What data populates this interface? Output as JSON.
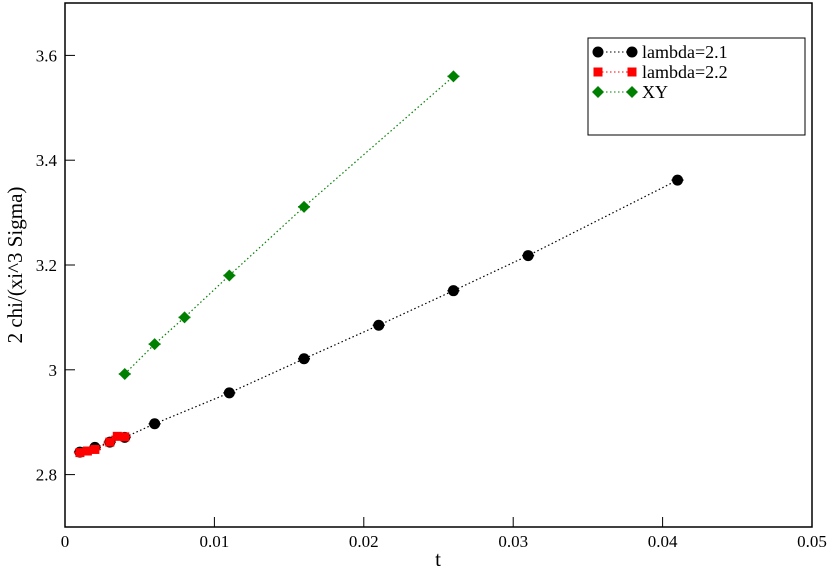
{
  "chart_data": {
    "type": "line",
    "x_label": "t",
    "y_label": "2 chi/(xi^3 Sigma)",
    "xlim": [
      0,
      0.05
    ],
    "ylim": [
      2.7,
      3.7
    ],
    "xticks": [
      0,
      0.01,
      0.02,
      0.03,
      0.04,
      0.05
    ],
    "yticks": [
      2.8,
      3,
      3.2,
      3.4,
      3.6
    ],
    "legend": "upper right",
    "series": [
      {
        "name": "lambda=2.1",
        "color": "#000000",
        "marker": "circle",
        "x": [
          0.001,
          0.002,
          0.003,
          0.004,
          0.006,
          0.011,
          0.016,
          0.021,
          0.026,
          0.031,
          0.041
        ],
        "values": [
          2.843,
          2.852,
          2.862,
          2.871,
          2.897,
          2.956,
          3.021,
          3.085,
          3.151,
          3.218,
          3.362
        ]
      },
      {
        "name": "lambda=2.2",
        "color": "#ff0000",
        "marker": "square",
        "x": [
          0.001,
          0.0015,
          0.002,
          0.003,
          0.0035,
          0.004
        ],
        "values": [
          2.842,
          2.845,
          2.848,
          2.862,
          2.873,
          2.872
        ]
      },
      {
        "name": "XY",
        "color": "#008000",
        "marker": "diamond",
        "x": [
          0.004,
          0.006,
          0.008,
          0.011,
          0.016,
          0.026
        ],
        "values": [
          2.992,
          3.049,
          3.1,
          3.18,
          3.311,
          3.56
        ]
      }
    ]
  }
}
